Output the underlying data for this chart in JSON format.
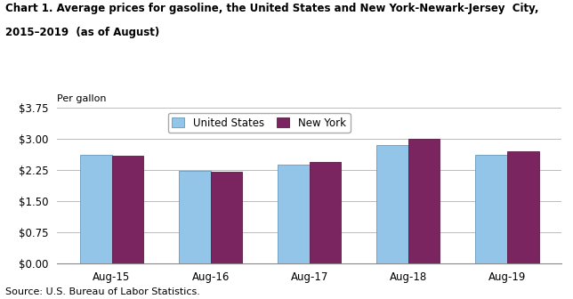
{
  "title_line1": "Chart 1. Average prices for gasoline, the United States and New York-Newark-Jersey  City,",
  "title_line2": "2015–2019  (as of August)",
  "ylabel": "Per gallon",
  "source": "Source: U.S. Bureau of Labor Statistics.",
  "categories": [
    "Aug-15",
    "Aug-16",
    "Aug-17",
    "Aug-18",
    "Aug-19"
  ],
  "us_values": [
    2.62,
    2.22,
    2.37,
    2.85,
    2.61
  ],
  "ny_values": [
    2.58,
    2.21,
    2.43,
    2.99,
    2.7
  ],
  "us_color": "#92C5E8",
  "ny_color": "#7B2560",
  "us_label": "United States",
  "ny_label": "New York",
  "ylim": [
    0,
    3.75
  ],
  "yticks": [
    0.0,
    0.75,
    1.5,
    2.25,
    3.0,
    3.75
  ],
  "ytick_labels": [
    "$0.00",
    "$0.75",
    "$1.50",
    "$2.25",
    "$3.00",
    "$3.75"
  ],
  "background_color": "#ffffff",
  "plot_bg_color": "#ffffff",
  "grid_color": "#bbbbbb",
  "bar_width": 0.32
}
